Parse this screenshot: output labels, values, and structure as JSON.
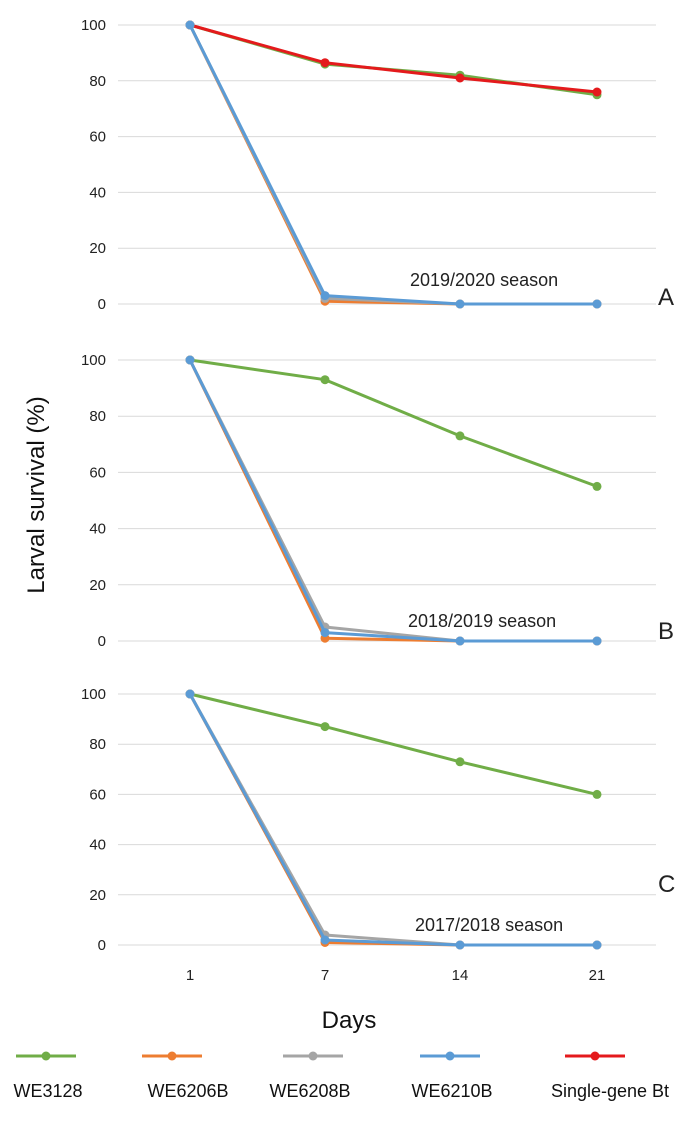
{
  "chart_data": {
    "type": "line",
    "ylabel": "Larval survival (%)",
    "xlabel": "Days",
    "categories": [
      "1",
      "7",
      "14",
      "21"
    ],
    "ylim": [
      0,
      100
    ],
    "yticks": [
      0,
      20,
      40,
      60,
      80,
      100
    ],
    "grid": true,
    "legend_placement": "bottom",
    "series_styles": [
      {
        "name": "WE3128",
        "color": "#70ad47"
      },
      {
        "name": "WE6206B",
        "color": "#ed7d31"
      },
      {
        "name": "WE6208B",
        "color": "#a5a5a5"
      },
      {
        "name": "WE6210B",
        "color": "#5b9bd5"
      },
      {
        "name": "Single-gene Bt",
        "color": "#e41a1c"
      }
    ],
    "panels": [
      {
        "letter": "A",
        "season": "2019/2020 season",
        "series": [
          {
            "name": "WE3128",
            "values": [
              100,
              86,
              82,
              75
            ]
          },
          {
            "name": "WE6206B",
            "values": [
              100,
              1,
              0,
              0
            ]
          },
          {
            "name": "WE6208B",
            "values": [
              100,
              2,
              0,
              0
            ]
          },
          {
            "name": "WE6210B",
            "values": [
              100,
              3,
              0,
              0
            ]
          },
          {
            "name": "Single-gene Bt",
            "values": [
              100,
              86.5,
              81,
              76
            ]
          }
        ]
      },
      {
        "letter": "B",
        "season": "2018/2019 season",
        "series": [
          {
            "name": "WE3128",
            "values": [
              100,
              93,
              73,
              55
            ]
          },
          {
            "name": "WE6206B",
            "values": [
              100,
              1,
              0,
              0
            ]
          },
          {
            "name": "WE6208B",
            "values": [
              100,
              5,
              0,
              0
            ]
          },
          {
            "name": "WE6210B",
            "values": [
              100,
              3,
              0,
              0
            ]
          }
        ]
      },
      {
        "letter": "C",
        "season": "2017/2018 season",
        "series": [
          {
            "name": "WE3128",
            "values": [
              100,
              87,
              73,
              60
            ]
          },
          {
            "name": "WE6206B",
            "values": [
              100,
              1,
              0,
              0
            ]
          },
          {
            "name": "WE6208B",
            "values": [
              100,
              4,
              0,
              0
            ]
          },
          {
            "name": "WE6210B",
            "values": [
              100,
              2,
              0,
              0
            ]
          }
        ]
      }
    ]
  }
}
